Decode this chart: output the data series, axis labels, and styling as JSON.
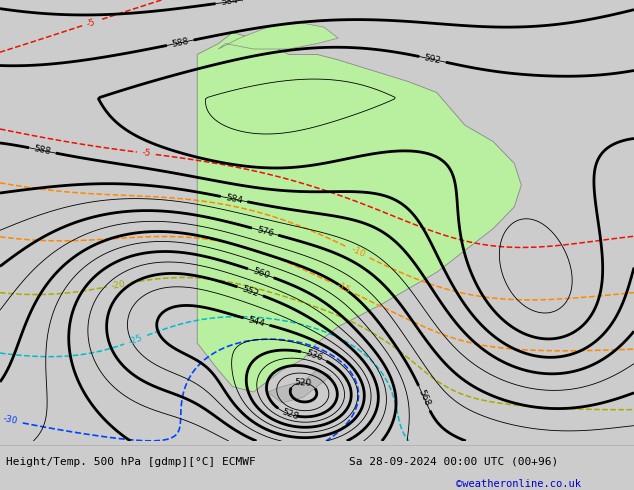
{
  "title_left": "Height/Temp. 500 hPa [gdmp][°C] ECMWF",
  "title_right": "Sa 28-09-2024 00:00 UTC (00+96)",
  "watermark": "©weatheronline.co.uk",
  "bg_color": "#cccccc",
  "green_color": "#b8f0a0",
  "gray_color": "#b0b0b0",
  "bar_color": "#f0f0f0",
  "z_color": "#000000",
  "t_red": "#ee1100",
  "t_orange": "#ff8800",
  "t_yellow": "#aaaa00",
  "t_cyan": "#00bbcc",
  "t_blue": "#0044ff",
  "figsize": [
    6.34,
    4.9
  ],
  "dpi": 100,
  "lon_min": -108,
  "lon_max": -18,
  "lat_min": -63,
  "lat_max": 18
}
